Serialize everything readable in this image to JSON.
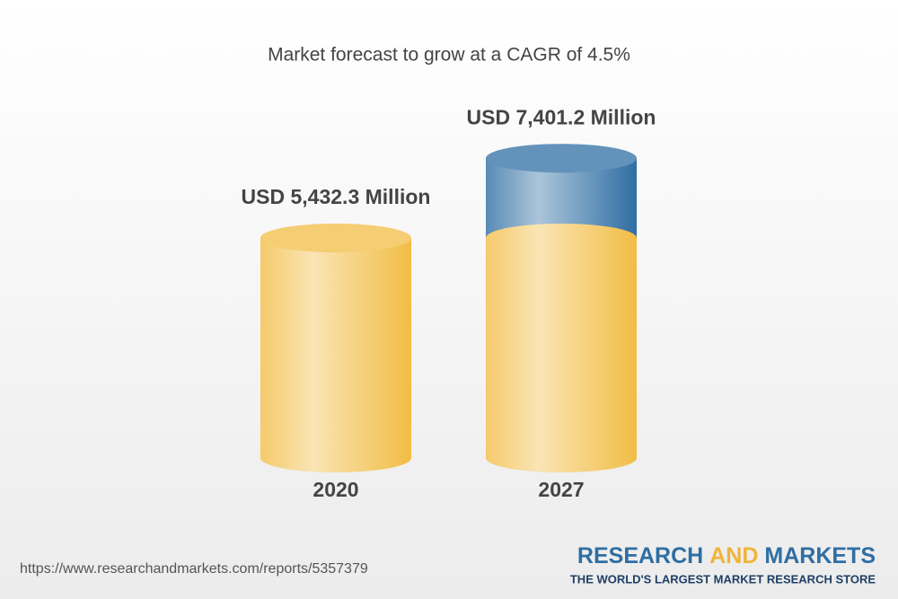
{
  "chart_data": {
    "type": "cylinder",
    "title": "Market forecast to grow at a CAGR of 4.5%",
    "categories": [
      "2020",
      "2027"
    ],
    "values": [
      5432.3,
      7401.2
    ],
    "value_labels": [
      "USD 5,432.3 Million",
      "USD 7,401.2 Million"
    ],
    "color": "#f2bd45",
    "growth_color": "#2f6ea3"
  },
  "footer": {
    "url": "https://www.researchandmarkets.com/reports/5357379",
    "logo": {
      "parts": [
        "RESEARCH",
        "AND",
        "MARKETS"
      ],
      "tagline": "THE WORLD'S LARGEST MARKET RESEARCH STORE"
    }
  }
}
